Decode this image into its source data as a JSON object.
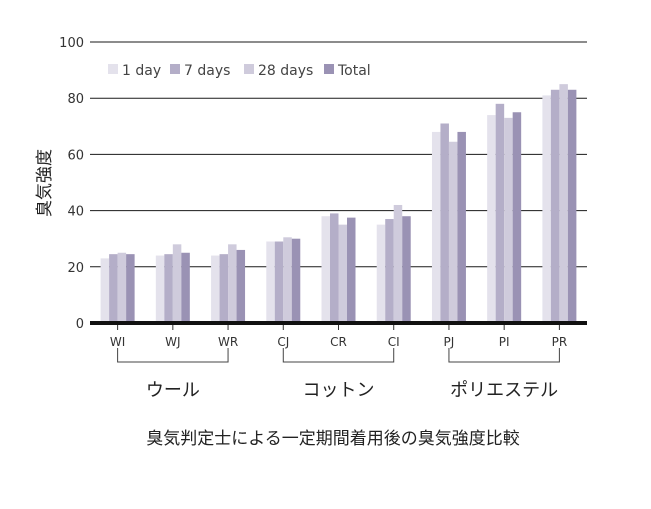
{
  "chart_data": {
    "type": "bar",
    "title": "",
    "ylabel": "臭気強度",
    "xlabel": "",
    "ylim": [
      0,
      100
    ],
    "yticks": [
      0,
      20,
      40,
      60,
      80,
      100
    ],
    "grid": true,
    "legend_position": "top-left",
    "categories": [
      "WI",
      "WJ",
      "WR",
      "CJ",
      "CR",
      "CI",
      "PJ",
      "PI",
      "PR"
    ],
    "series": [
      {
        "name": "1 day",
        "color": "#e4e2ec",
        "values": [
          23,
          24,
          24,
          29,
          38,
          35,
          68,
          74,
          81
        ]
      },
      {
        "name": "7 days",
        "color": "#b4aec8",
        "values": [
          24.5,
          24.5,
          24.5,
          29,
          39,
          37,
          71,
          78,
          83
        ]
      },
      {
        "name": "28 days",
        "color": "#cfcbdc",
        "values": [
          25,
          28,
          28,
          30.5,
          35,
          42,
          64.5,
          73,
          85
        ]
      },
      {
        "name": "Total",
        "color": "#9a92b4",
        "values": [
          24.5,
          25,
          26,
          30,
          37.5,
          38,
          68,
          75,
          83
        ]
      }
    ],
    "groups": [
      {
        "label": "ウール",
        "categories": [
          "WI",
          "WJ",
          "WR"
        ]
      },
      {
        "label": "コットン",
        "categories": [
          "CJ",
          "CR",
          "CI"
        ]
      },
      {
        "label": "ポリエステル",
        "categories": [
          "PJ",
          "PI",
          "PR"
        ]
      }
    ],
    "caption": "臭気判定士による一定期間着用後の臭気強度比較"
  }
}
